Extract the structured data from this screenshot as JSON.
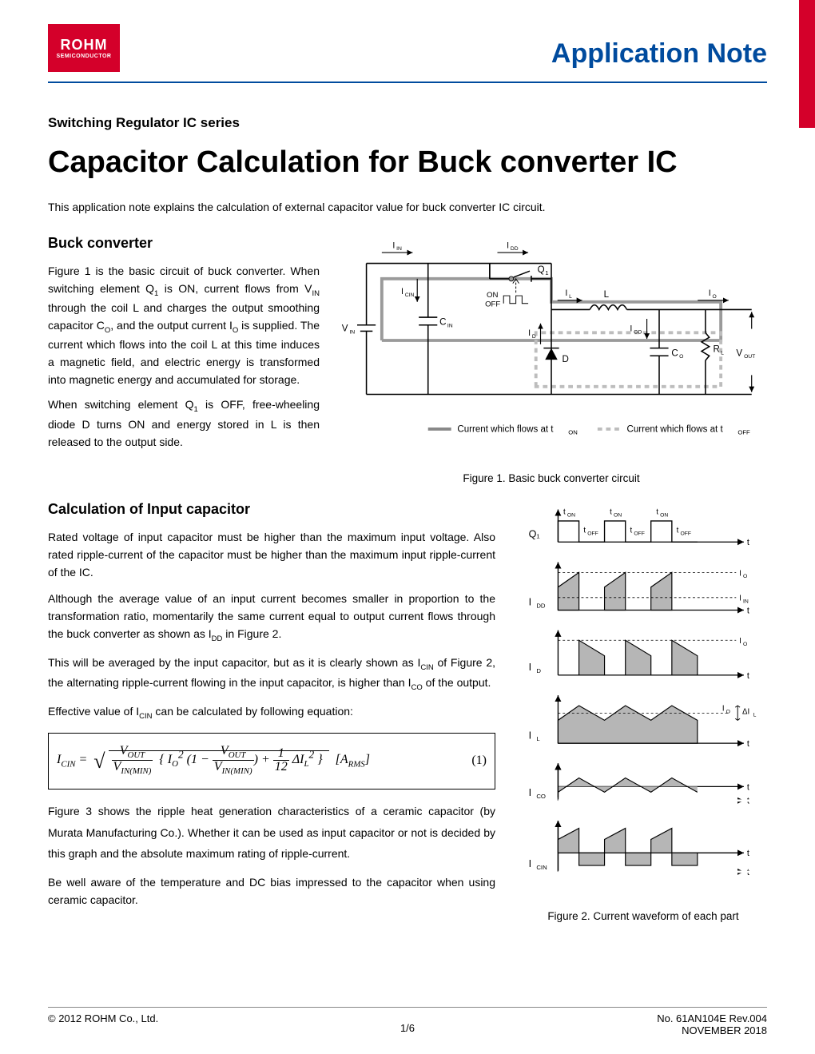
{
  "brand": {
    "name": "ROHM",
    "sub": "SEMICONDUCTOR",
    "logo_bg": "#d4002a",
    "logo_fg": "#ffffff"
  },
  "header": {
    "appnote": "Application Note",
    "color": "#004b9e"
  },
  "series": "Switching Regulator IC series",
  "title": "Capacitor Calculation for Buck converter IC",
  "intro": "This application note explains the calculation of external capacitor value for buck converter IC circuit.",
  "sec1": {
    "heading": "Buck converter",
    "p1": "Figure 1 is the basic circuit of buck converter. When switching element Q₁ is ON, current flows from V_IN through the coil L and charges the output smoothing capacitor C_O, and the output current I_O is supplied. The current which flows into the coil L at this time induces a magnetic field, and electric energy is transformed into magnetic energy and accumulated for storage.",
    "p2": "When switching element Q₁ is OFF, free-wheeling diode D turns ON and energy stored in L is then released to the output side."
  },
  "fig1": {
    "caption": "Figure 1. Basic buck converter circuit",
    "labels": {
      "IIN": "I_IN",
      "IDD": "I_DD",
      "ICIN": "I_CIN",
      "Q1": "Q₁",
      "ON": "ON",
      "OFF": "OFF",
      "IL": "I_L",
      "L": "L",
      "IO": "I_O",
      "VIN": "V_IN",
      "CIN": "C_IN",
      "ID": "I_D",
      "ICO": "I_CO",
      "D": "D",
      "CO": "C_O",
      "RL": "R_L",
      "VOUT": "V_OUT",
      "legend_on": "Current which flows at t_ON",
      "legend_off": "Current which flows at t_OFF"
    },
    "colors": {
      "wire": "#000000",
      "ton_path": "#888888",
      "toff_path": "#bdbdbd"
    }
  },
  "sec2": {
    "heading": "Calculation of Input capacitor",
    "p1": "Rated voltage of input capacitor must be higher than the maximum input voltage. Also rated ripple-current of the capacitor must be higher than the maximum input ripple-current of the IC.",
    "p2": "Although the average value of an input current becomes smaller in proportion to the transformation ratio, momentarily the same current equal to output current flows through the buck converter as shown as I_DD in Figure 2.",
    "p3": "This will be averaged by the input capacitor, but as it is clearly shown as I_CIN of Figure 2, the alternating ripple-current flowing in the input capacitor, is higher than I_CO of the output.",
    "p4": "Effective value of I_CIN can be calculated by following equation:",
    "eq_text": "I_CIN = sqrt( (V_OUT / V_IN(MIN)) · { I_O² · (1 − V_OUT / V_IN(MIN)) + (1/12)·ΔI_L² } )   [A_RMS]",
    "eq_num": "(1)",
    "p5": "Figure 3 shows the ripple heat generation characteristics of a ceramic capacitor (by Murata Manufacturing Co.). Whether it can be used as input capacitor or not is decided by this graph and the absolute maximum rating of ripple-current.",
    "p6": "Be well aware of the temperature and DC bias impressed to the capacitor when using ceramic capacitor."
  },
  "fig2": {
    "caption": "Figure 2. Current waveform of each part",
    "rows": [
      {
        "label": "Q₁",
        "type": "digital",
        "ton_label": "t_ON",
        "toff_label": "t_OFF"
      },
      {
        "label": "I_DD",
        "type": "trapezoid_pos",
        "axis": "t",
        "level_hi": "I_O",
        "level_lo": "I_IN"
      },
      {
        "label": "I_D",
        "type": "trapezoid_off",
        "axis": "t",
        "level_hi": "I_O"
      },
      {
        "label": "I_L",
        "type": "triangle_cont",
        "axis": "t",
        "center": "I_O",
        "ripple": "ΔI_L"
      },
      {
        "label": "I_CO",
        "type": "triangle_acdc",
        "axis": "t"
      },
      {
        "label": "I_CIN",
        "type": "bipolar_trapezoid",
        "axis": "t"
      }
    ],
    "timing": {
      "period": 60,
      "duty": 0.45,
      "n_cycles": 3
    },
    "colors": {
      "fill": "#b6b6b6",
      "stroke": "#000000",
      "axis": "#000000"
    }
  },
  "footer": {
    "left": "© 2012 ROHM Co., Ltd.",
    "center": "1/6",
    "right1": "No. 61AN104E Rev.004",
    "right2": "NOVEMBER  2018"
  }
}
